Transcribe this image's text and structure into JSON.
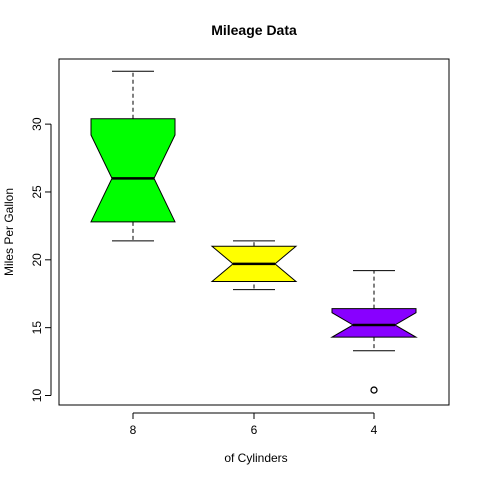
{
  "chart_data": {
    "type": "box",
    "title": "Mileage Data",
    "xlabel": "of Cylinders",
    "ylabel": "Miles Per Gallon",
    "ylim": [
      9.3,
      34.8
    ],
    "yticks": [
      10,
      15,
      20,
      25,
      30
    ],
    "categories": [
      "8",
      "6",
      "4"
    ],
    "notched": true,
    "series": [
      {
        "category": "8",
        "color": "#00ff00",
        "whisker_low": 21.4,
        "q1": 22.8,
        "median": 26.0,
        "q3": 30.4,
        "whisker_high": 33.9,
        "notch_low": 22.8,
        "notch_high": 29.2,
        "outliers": []
      },
      {
        "category": "6",
        "color": "#ffff00",
        "whisker_low": 17.8,
        "q1": 18.7,
        "median": 19.7,
        "q3": 21.0,
        "whisker_high": 21.4,
        "notch_low": 18.4,
        "notch_high": 21.0,
        "outliers": []
      },
      {
        "category": "4",
        "color": "#8800ff",
        "whisker_low": 13.3,
        "q1": 14.3,
        "median": 15.2,
        "q3": 16.4,
        "whisker_high": 19.2,
        "notch_low": 14.3,
        "notch_high": 16.1,
        "outliers": [
          10.4
        ]
      }
    ]
  }
}
